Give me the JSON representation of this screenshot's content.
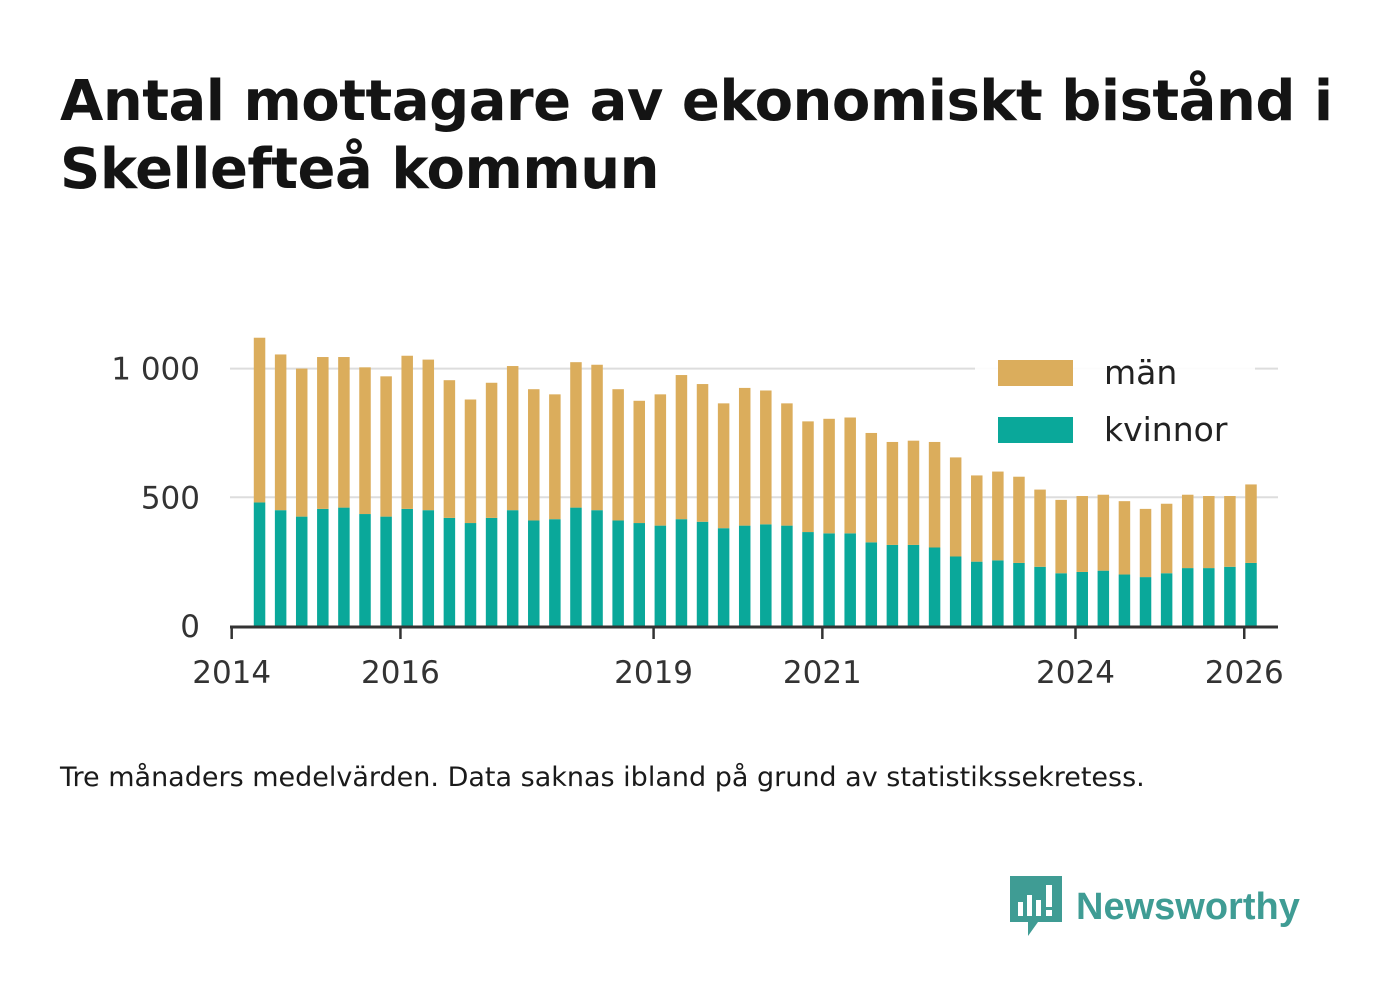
{
  "title": "Antal mottagare av ekonomiskt bistånd i Skellefteå kommun",
  "caption": "Tre månaders medelvärden. Data saknas ibland på grund av statistikssekretess.",
  "brand": {
    "name": "Newsworthy",
    "icon": "newsworthy-logo-icon",
    "color": "#3f9c94"
  },
  "colors": {
    "women": "#0aa89a",
    "men": "#dbad5c",
    "grid": "#dddddd",
    "axis": "#333333"
  },
  "chart_data": {
    "type": "bar",
    "stacked": true,
    "title": "Antal mottagare av ekonomiskt bistånd i Skellefteå kommun",
    "xlabel": "",
    "ylabel": "",
    "ylim": [
      0,
      1150
    ],
    "yticks": [
      0,
      500,
      1000
    ],
    "ytick_labels": [
      "0",
      "500",
      "1 000"
    ],
    "xlim": [
      2013.98,
      2026.4
    ],
    "xticks": [
      2014,
      2016,
      2019,
      2021,
      2024,
      2026
    ],
    "xtick_labels": [
      "2014",
      "2016",
      "2019",
      "2021",
      "2024",
      "2026"
    ],
    "legend_position": "top-right",
    "x": [
      2014.33,
      2014.58,
      2014.83,
      2015.08,
      2015.33,
      2015.58,
      2015.83,
      2016.08,
      2016.33,
      2016.58,
      2016.83,
      2017.08,
      2017.33,
      2017.58,
      2017.83,
      2018.08,
      2018.33,
      2018.58,
      2018.83,
      2019.08,
      2019.33,
      2019.58,
      2019.83,
      2020.08,
      2020.33,
      2020.58,
      2020.83,
      2021.08,
      2021.33,
      2021.58,
      2021.83,
      2022.08,
      2022.33,
      2022.58,
      2022.83,
      2023.08,
      2023.33,
      2023.58,
      2023.83,
      2024.08,
      2024.33,
      2024.58,
      2024.83,
      2025.08,
      2025.33,
      2025.58,
      2025.83,
      2026.08
    ],
    "series": [
      {
        "name": "kvinnor",
        "values": [
          480,
          450,
          425,
          455,
          460,
          435,
          425,
          455,
          450,
          420,
          400,
          420,
          450,
          410,
          415,
          460,
          450,
          410,
          400,
          390,
          415,
          405,
          380,
          390,
          395,
          390,
          365,
          360,
          360,
          325,
          315,
          315,
          305,
          270,
          250,
          255,
          245,
          230,
          205,
          210,
          215,
          200,
          190,
          205,
          225,
          225,
          230,
          245
        ]
      },
      {
        "name": "män",
        "values": [
          640,
          605,
          575,
          590,
          585,
          570,
          545,
          595,
          585,
          535,
          480,
          525,
          560,
          510,
          485,
          565,
          565,
          510,
          475,
          510,
          560,
          535,
          485,
          535,
          520,
          475,
          430,
          445,
          450,
          425,
          400,
          405,
          410,
          385,
          335,
          345,
          335,
          300,
          285,
          295,
          295,
          285,
          265,
          270,
          285,
          280,
          275,
          305
        ]
      }
    ]
  }
}
